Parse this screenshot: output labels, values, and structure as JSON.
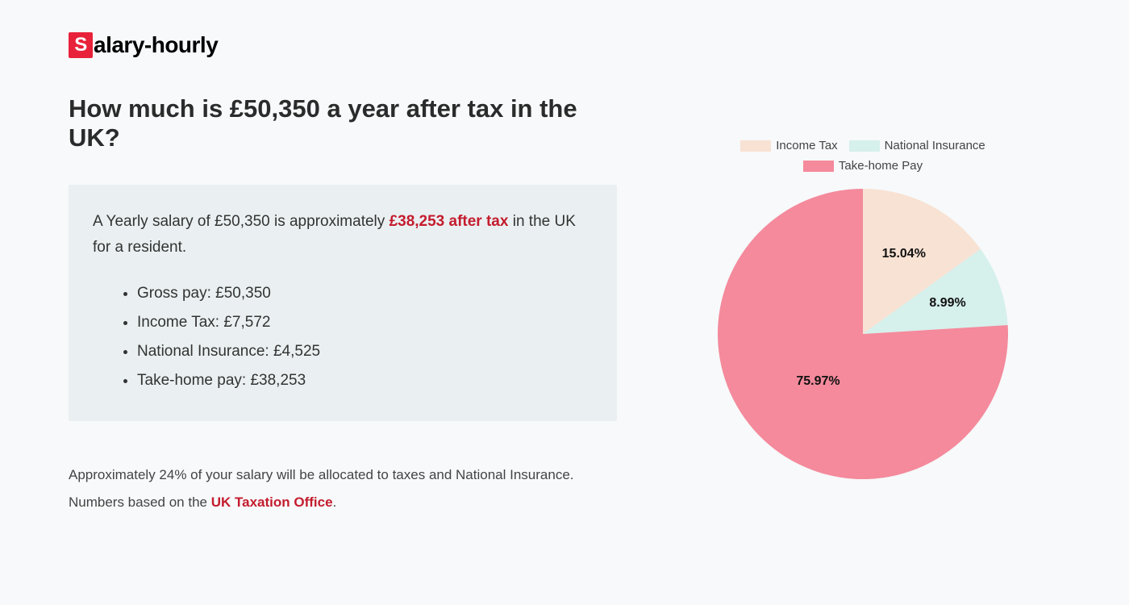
{
  "logo": {
    "badge_letter": "S",
    "rest": "alary-hourly",
    "badge_bg": "#e8223a"
  },
  "heading": "How much is £50,350 a year after tax in the UK?",
  "info": {
    "intro_pre": "A Yearly salary of £50,350 is approximately ",
    "intro_highlight": "£38,253 after tax",
    "intro_post": " in the UK for a resident.",
    "items": [
      "Gross pay: £50,350",
      "Income Tax: £7,572",
      "National Insurance: £4,525",
      "Take-home pay: £38,253"
    ]
  },
  "footnote": {
    "line1": "Approximately 24% of your salary will be allocated to taxes and National Insurance.",
    "line2_pre": "Numbers based on the ",
    "line2_link": "UK Taxation Office",
    "line2_post": "."
  },
  "chart": {
    "type": "pie",
    "radius": 180,
    "background_color": "#f7f9fa",
    "slices": [
      {
        "label": "Income Tax",
        "value": 15.04,
        "display": "15.04%",
        "color": "#f8e2d3"
      },
      {
        "label": "National Insurance",
        "value": 8.99,
        "display": "8.99%",
        "color": "#d6f0ec"
      },
      {
        "label": "Take-home Pay",
        "value": 75.97,
        "display": "75.97%",
        "color": "#f48a9c"
      }
    ],
    "label_fontsize": 16,
    "label_fontweight": 700,
    "label_color": "#111",
    "legend_fontsize": 15,
    "legend_swatch_w": 38,
    "legend_swatch_h": 14
  }
}
